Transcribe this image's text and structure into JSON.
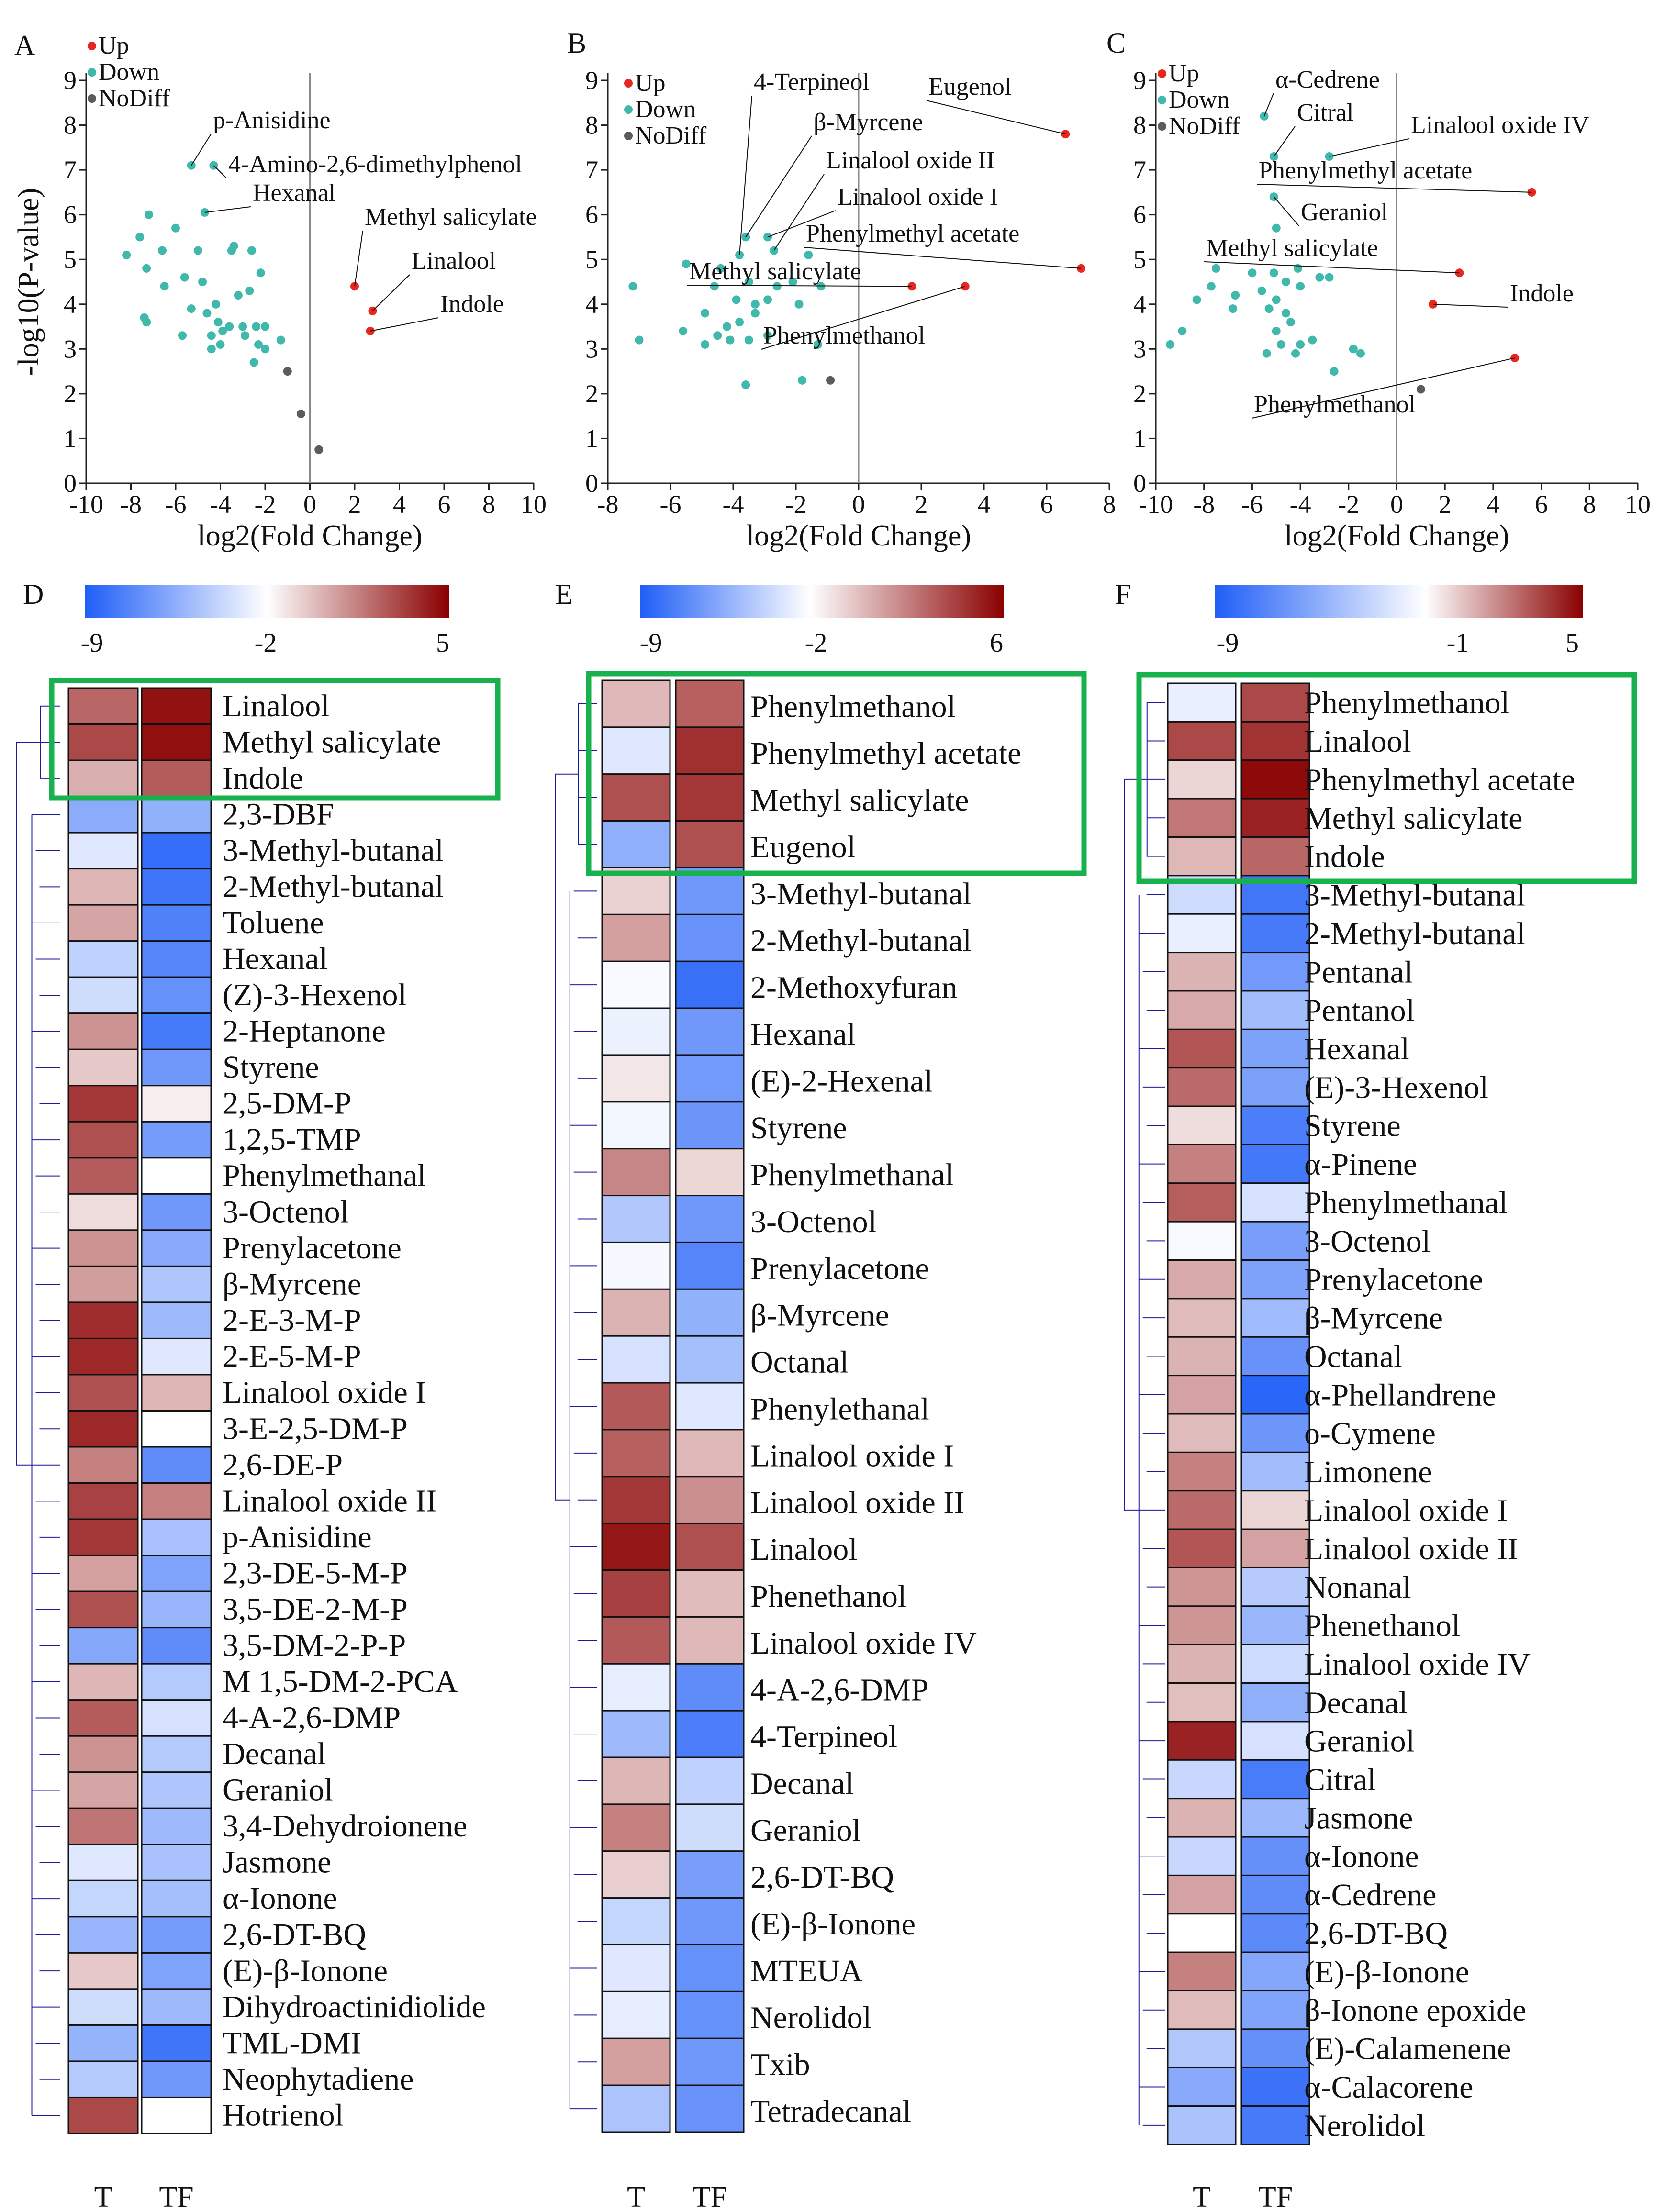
{
  "colors": {
    "up": "#e8281e",
    "down": "#40b9ac",
    "nodiff": "#5c5c5c",
    "low": "#1f5ef7",
    "mid": "#ffffff",
    "high": "#8a0000",
    "box": "#17b14d",
    "tree": "#1a1a9a"
  },
  "chart_data": [
    {
      "type": "scatter",
      "panel": "A",
      "xlabel": "log2(Fold Change)",
      "ylabel": "-log10(P-value)",
      "xlim": [
        -10,
        10
      ],
      "ylim": [
        0,
        9
      ],
      "xticks": [
        -10,
        -8,
        -6,
        -4,
        -2,
        0,
        2,
        4,
        6,
        8,
        10
      ],
      "yticks": [
        0,
        1,
        2,
        3,
        4,
        5,
        6,
        7,
        8,
        9
      ],
      "legend": [
        "Up",
        "Down",
        "NoDiff"
      ],
      "up": [
        [
          2.0,
          4.4
        ],
        [
          2.8,
          3.85
        ],
        [
          2.7,
          3.4
        ]
      ],
      "nodiff": [
        [
          -1.0,
          2.5
        ],
        [
          -0.4,
          1.55
        ],
        [
          0.4,
          0.75
        ]
      ],
      "down": [
        [
          -5.3,
          7.1
        ],
        [
          -4.3,
          7.1
        ],
        [
          -4.7,
          6.05
        ],
        [
          -7.2,
          6.0
        ],
        [
          -6.0,
          5.7
        ],
        [
          -8.2,
          5.1
        ],
        [
          -7.6,
          5.5
        ],
        [
          -6.6,
          5.2
        ],
        [
          -5.0,
          5.2
        ],
        [
          -3.4,
          5.3
        ],
        [
          -3.5,
          5.2
        ],
        [
          -2.6,
          5.2
        ],
        [
          -7.3,
          4.8
        ],
        [
          -5.6,
          4.6
        ],
        [
          -4.8,
          4.5
        ],
        [
          -6.5,
          4.4
        ],
        [
          -2.2,
          4.7
        ],
        [
          -2.7,
          4.3
        ],
        [
          -3.2,
          4.2
        ],
        [
          -4.2,
          4.0
        ],
        [
          -5.3,
          3.9
        ],
        [
          -7.4,
          3.7
        ],
        [
          -7.3,
          3.6
        ],
        [
          -4.6,
          3.8
        ],
        [
          -4.1,
          3.6
        ],
        [
          -3.6,
          3.5
        ],
        [
          -3.0,
          3.5
        ],
        [
          -5.7,
          3.3
        ],
        [
          -4.4,
          3.3
        ],
        [
          -3.9,
          3.4
        ],
        [
          -2.9,
          3.3
        ],
        [
          -4.0,
          3.1
        ],
        [
          -2.4,
          3.5
        ],
        [
          -2.0,
          3.5
        ],
        [
          -2.3,
          3.1
        ],
        [
          -2.0,
          3.0
        ],
        [
          -1.3,
          3.2
        ],
        [
          -2.5,
          2.7
        ],
        [
          -4.4,
          3.0
        ]
      ],
      "labels": [
        {
          "text": "p-Anisidine",
          "pt": [
            -5.3,
            7.1
          ]
        },
        {
          "text": "4-Amino-2,6-dimethylphenol",
          "pt": [
            -4.3,
            7.1
          ]
        },
        {
          "text": "Hexanal",
          "pt": [
            -4.7,
            6.05
          ]
        },
        {
          "text": "Methyl salicylate",
          "pt": [
            2.0,
            4.4
          ]
        },
        {
          "text": "Linalool",
          "pt": [
            2.8,
            3.85
          ]
        },
        {
          "text": "Indole",
          "pt": [
            2.7,
            3.4
          ]
        }
      ]
    },
    {
      "type": "scatter",
      "panel": "B",
      "xlabel": "log2(Fold Change)",
      "ylabel": "",
      "xlim": [
        -8,
        8
      ],
      "ylim": [
        0,
        9
      ],
      "xticks": [
        -8,
        -6,
        -4,
        -2,
        0,
        2,
        4,
        6,
        8
      ],
      "yticks": [
        0,
        1,
        2,
        3,
        4,
        5,
        6,
        7,
        8,
        9
      ],
      "legend": [
        "Up",
        "Down",
        "NoDiff"
      ],
      "up": [
        [
          6.6,
          7.8
        ],
        [
          7.1,
          4.8
        ],
        [
          1.7,
          4.4
        ],
        [
          3.4,
          4.4
        ]
      ],
      "nodiff": [
        [
          -0.9,
          2.3
        ]
      ],
      "down": [
        [
          -3.8,
          5.1
        ],
        [
          -3.6,
          5.5
        ],
        [
          -2.7,
          5.2
        ],
        [
          -2.9,
          5.5
        ],
        [
          -1.6,
          5.1
        ],
        [
          -5.5,
          4.9
        ],
        [
          -4.4,
          4.8
        ],
        [
          -7.2,
          4.4
        ],
        [
          -3.5,
          4.5
        ],
        [
          -4.6,
          4.4
        ],
        [
          -2.6,
          4.4
        ],
        [
          -2.1,
          4.5
        ],
        [
          -1.2,
          4.4
        ],
        [
          -3.9,
          4.1
        ],
        [
          -3.3,
          4.0
        ],
        [
          -2.9,
          4.1
        ],
        [
          -1.9,
          4.0
        ],
        [
          -4.9,
          3.8
        ],
        [
          -4.2,
          3.5
        ],
        [
          -3.8,
          3.6
        ],
        [
          -3.3,
          3.8
        ],
        [
          -5.6,
          3.4
        ],
        [
          -4.5,
          3.3
        ],
        [
          -3.5,
          3.2
        ],
        [
          -7.0,
          3.2
        ],
        [
          -4.9,
          3.1
        ],
        [
          -2.9,
          3.3
        ],
        [
          -4.1,
          3.2
        ],
        [
          -1.3,
          3.1
        ],
        [
          -3.6,
          2.2
        ],
        [
          -1.8,
          2.3
        ]
      ],
      "labels": [
        {
          "text": "4-Terpineol",
          "pt": [
            -3.8,
            5.1
          ]
        },
        {
          "text": "β-Myrcene",
          "pt": [
            -3.6,
            5.5
          ]
        },
        {
          "text": "Linalool oxide II",
          "pt": [
            -2.7,
            5.2
          ]
        },
        {
          "text": "Linalool oxide I",
          "pt": [
            -2.9,
            5.5
          ]
        },
        {
          "text": "Eugenol",
          "pt": [
            6.6,
            7.8
          ]
        },
        {
          "text": "Phenylmethyl acetate",
          "pt": [
            7.1,
            4.8
          ]
        },
        {
          "text": "Methyl salicylate",
          "pt": [
            1.7,
            4.4
          ]
        },
        {
          "text": "Phenylmethanol",
          "pt": [
            3.4,
            4.4
          ]
        }
      ]
    },
    {
      "type": "scatter",
      "panel": "C",
      "xlabel": "log2(Fold Change)",
      "ylabel": "",
      "xlim": [
        -10,
        10
      ],
      "ylim": [
        0,
        9
      ],
      "xticks": [
        -10,
        -8,
        -6,
        -4,
        -2,
        0,
        2,
        4,
        6,
        8,
        10
      ],
      "yticks": [
        0,
        1,
        2,
        3,
        4,
        5,
        6,
        7,
        8,
        9
      ],
      "legend": [
        "Up",
        "Down",
        "NoDiff"
      ],
      "up": [
        [
          5.6,
          6.5
        ],
        [
          2.6,
          4.7
        ],
        [
          1.5,
          4.0
        ],
        [
          4.9,
          2.8
        ]
      ],
      "nodiff": [
        [
          1.0,
          2.1
        ]
      ],
      "down": [
        [
          -5.5,
          8.2
        ],
        [
          -5.1,
          7.3
        ],
        [
          -2.8,
          7.3
        ],
        [
          -5.1,
          6.4
        ],
        [
          -5.0,
          5.7
        ],
        [
          -7.5,
          4.8
        ],
        [
          -6.0,
          4.7
        ],
        [
          -5.1,
          4.7
        ],
        [
          -4.1,
          4.8
        ],
        [
          -2.8,
          4.6
        ],
        [
          -7.7,
          4.4
        ],
        [
          -4.6,
          4.5
        ],
        [
          -4.0,
          4.4
        ],
        [
          -3.2,
          4.6
        ],
        [
          -8.3,
          4.1
        ],
        [
          -5.6,
          4.3
        ],
        [
          -5.0,
          4.1
        ],
        [
          -6.7,
          4.2
        ],
        [
          -6.8,
          3.9
        ],
        [
          -5.3,
          3.9
        ],
        [
          -4.6,
          3.8
        ],
        [
          -8.9,
          3.4
        ],
        [
          -5.0,
          3.4
        ],
        [
          -4.4,
          3.6
        ],
        [
          -3.5,
          3.2
        ],
        [
          -4.8,
          3.1
        ],
        [
          -4.0,
          3.1
        ],
        [
          -9.4,
          3.1
        ],
        [
          -5.4,
          2.9
        ],
        [
          -4.2,
          2.9
        ],
        [
          -1.8,
          3.0
        ],
        [
          -1.5,
          2.9
        ],
        [
          -2.6,
          2.5
        ]
      ],
      "labels": [
        {
          "text": "α-Cedrene",
          "pt": [
            -5.5,
            8.2
          ]
        },
        {
          "text": "Citral",
          "pt": [
            -5.1,
            7.3
          ]
        },
        {
          "text": "Linalool oxide IV",
          "pt": [
            -2.8,
            7.3
          ]
        },
        {
          "text": "Phenylmethyl acetate",
          "pt": [
            5.6,
            6.5
          ]
        },
        {
          "text": "Geraniol",
          "pt": [
            -5.1,
            6.4
          ]
        },
        {
          "text": "Methyl salicylate",
          "pt": [
            2.6,
            4.7
          ]
        },
        {
          "text": "Indole",
          "pt": [
            1.5,
            4.0
          ]
        },
        {
          "text": "Phenylmethanol",
          "pt": [
            4.9,
            2.8
          ]
        }
      ]
    },
    {
      "type": "heatmap",
      "panel": "D",
      "columns": [
        "T",
        "TF"
      ],
      "scale": {
        "min": -9,
        "mid": -2,
        "max": 5
      },
      "rows": [
        [
          "Linalool",
          2.2,
          4.5
        ],
        [
          "Methyl salicylate",
          3.0,
          4.6
        ],
        [
          "Indole",
          0.2,
          2.5
        ],
        [
          "2,3-DBF",
          -5.6,
          -5.4
        ],
        [
          "3-Methyl-butanal",
          -3.0,
          -8.3
        ],
        [
          "2-Methyl-butanal",
          0.0,
          -8.0
        ],
        [
          "Toluene",
          0.5,
          -7.5
        ],
        [
          "Hexanal",
          -4.0,
          -7.3
        ],
        [
          "(Z)-3-Hexenol",
          -3.5,
          -6.8
        ],
        [
          "2-Heptanone",
          1.0,
          -7.8
        ],
        [
          "Styrene",
          -0.5,
          -6.5
        ],
        [
          "2,5-DM-P",
          3.5,
          -1.5
        ],
        [
          "1,2,5-TMP",
          2.8,
          -6.3
        ],
        [
          "Phenylmethanal",
          2.5,
          -2.0
        ],
        [
          "3-Octenol",
          -1.0,
          -6.5
        ],
        [
          "Prenylacetone",
          1.0,
          -5.7
        ],
        [
          "β-Myrcene",
          0.7,
          -4.5
        ],
        [
          "2-E-3-M-P",
          3.8,
          -5.0
        ],
        [
          "2-E-5-M-P",
          3.9,
          -3.0
        ],
        [
          "Linalool oxide I",
          2.8,
          0.0
        ],
        [
          "3-E-2,5-DM-P",
          3.9,
          -2.0
        ],
        [
          "2,6-DE-P",
          1.5,
          -7.0
        ],
        [
          "Linalool oxide II",
          3.2,
          1.5
        ],
        [
          "p-Anisidine",
          3.5,
          -4.7
        ],
        [
          "2,3-DE-5-M-P",
          0.6,
          -6.0
        ],
        [
          "3,5-DE-2-M-P",
          2.8,
          -5.2
        ],
        [
          "3,5-DM-2-P-P",
          -5.8,
          -7.0
        ],
        [
          "M 1,5-DM-2-PCA",
          0.0,
          -4.3
        ],
        [
          "4-A-2,6-DMP",
          2.5,
          -3.3
        ],
        [
          "Decanal",
          1.0,
          -4.3
        ],
        [
          "Geraniol",
          0.5,
          -4.5
        ],
        [
          "3,4-Dehydroionene",
          1.8,
          -5.0
        ],
        [
          "Jasmone",
          -3.0,
          -4.7
        ],
        [
          "α-Ionone",
          -3.8,
          -4.8
        ],
        [
          "2,6-DT-BQ",
          -5.2,
          -6.3
        ],
        [
          "(E)-β-Ionone",
          -0.5,
          -6.0
        ],
        [
          "Dihydroactinidiolide",
          -3.5,
          -5.0
        ],
        [
          "TML-DMI",
          -5.3,
          -8.0
        ],
        [
          "Neophytadiene",
          -4.3,
          -6.5
        ],
        [
          "Hotrienol",
          3.0,
          -2.0
        ]
      ]
    },
    {
      "type": "heatmap",
      "panel": "E",
      "columns": [
        "T",
        "TF"
      ],
      "scale": {
        "min": -9,
        "mid": -2,
        "max": 6
      },
      "rows": [
        [
          "Phenylmethanol",
          0.2,
          3.0
        ],
        [
          "Phenylmethyl acetate",
          -3.0,
          4.5
        ],
        [
          "Methyl salicylate",
          3.5,
          4.3
        ],
        [
          "Eugenol",
          -5.5,
          3.5
        ],
        [
          "3-Methyl-butanal",
          -0.6,
          -6.5
        ],
        [
          "2-Methyl-butanal",
          1.0,
          -6.7
        ],
        [
          "2-Methoxyfuran",
          -2.2,
          -8.2
        ],
        [
          "Hexanal",
          -2.6,
          -6.5
        ],
        [
          "(E)-2-Hexenal",
          -1.2,
          -6.4
        ],
        [
          "Styrene",
          -2.4,
          -6.6
        ],
        [
          "Phenylmethanal",
          1.8,
          -0.7
        ],
        [
          "3-Octenol",
          -4.4,
          -6.5
        ],
        [
          "Prenylacetone",
          -2.3,
          -7.3
        ],
        [
          "β-Myrcene",
          0.4,
          -5.4
        ],
        [
          "Octanal",
          -3.3,
          -4.8
        ],
        [
          "Phenylethanal",
          3.2,
          -3.0
        ],
        [
          "Linalool oxide I",
          3.0,
          0.2
        ],
        [
          "Linalool oxide II",
          4.3,
          1.5
        ],
        [
          "Linalool",
          5.3,
          3.5
        ],
        [
          "Phenethanol",
          4.0,
          0.1
        ],
        [
          "Linalool oxide IV",
          3.2,
          0.2
        ],
        [
          "4-A-2,6-DMP",
          -2.8,
          -7.0
        ],
        [
          "4-Terpineol",
          -5.0,
          -7.6
        ],
        [
          "Decanal",
          0.3,
          -4.0
        ],
        [
          "Geraniol",
          2.0,
          -3.5
        ],
        [
          "2,6-DT-BQ",
          -0.5,
          -6.2
        ],
        [
          "(E)-β-Ionone",
          -3.8,
          -6.5
        ],
        [
          "MTEUA",
          -3.0,
          -6.8
        ],
        [
          "Nerolidol",
          -2.8,
          -6.8
        ],
        [
          "Txib",
          1.0,
          -6.5
        ],
        [
          "Tetradecanal",
          -4.6,
          -6.7
        ]
      ]
    },
    {
      "type": "heatmap",
      "panel": "F",
      "columns": [
        "T",
        "TF"
      ],
      "scale": {
        "min": -9,
        "mid": -1,
        "max": 5
      },
      "rows": [
        [
          "Phenylmethanol",
          -1.8,
          3.3
        ],
        [
          "Linalool",
          3.3,
          3.8
        ],
        [
          "Phenylmethyl acetate",
          0.0,
          4.8
        ],
        [
          "Methyl salicylate",
          2.2,
          4.2
        ],
        [
          "Indole",
          0.7,
          2.6
        ],
        [
          "3-Methyl-butanal",
          -2.8,
          -7.8
        ],
        [
          "2-Methyl-butanal",
          -1.8,
          -7.6
        ],
        [
          "Pentanal",
          0.8,
          -6.0
        ],
        [
          "Pentanol",
          1.0,
          -4.3
        ],
        [
          "Hexanal",
          3.0,
          -5.6
        ],
        [
          "(E)-3-Hexenol",
          2.5,
          -5.7
        ],
        [
          "Styrene",
          -0.2,
          -7.4
        ],
        [
          "α-Pinene",
          2.0,
          -7.7
        ],
        [
          "Phenylmethanal",
          2.8,
          -2.5
        ],
        [
          "3-Octenol",
          -1.3,
          -5.8
        ],
        [
          "Prenylacetone",
          1.0,
          -5.6
        ],
        [
          "β-Myrcene",
          0.6,
          -4.4
        ],
        [
          "Octanal",
          0.8,
          -6.4
        ],
        [
          "α-Phellandrene",
          1.2,
          -8.6
        ],
        [
          "o-Cymene",
          0.6,
          -6.2
        ],
        [
          "Limonene",
          2.0,
          -4.3
        ],
        [
          "Linalool oxide I",
          2.5,
          0.0
        ],
        [
          "Linalool oxide II",
          3.0,
          1.2
        ],
        [
          "Nonanal",
          1.5,
          -3.6
        ],
        [
          "Phenethanol",
          1.5,
          -4.6
        ],
        [
          "Linalool oxide IV",
          0.8,
          -2.8
        ],
        [
          "Decanal",
          0.5,
          -5.0
        ],
        [
          "Geraniol",
          4.2,
          -2.5
        ],
        [
          "Citral",
          -3.0,
          -7.5
        ],
        [
          "Jasmone",
          0.8,
          -4.5
        ],
        [
          "α-Ionone",
          -3.0,
          -6.5
        ],
        [
          "α-Cedrene",
          1.2,
          -6.7
        ],
        [
          "2,6-DT-BQ",
          -1.0,
          -6.8
        ],
        [
          "(E)-β-Ionone",
          2.0,
          -5.4
        ],
        [
          "β-Ionone epoxide",
          0.6,
          -5.5
        ],
        [
          "(E)-Calamenene",
          -3.8,
          -6.5
        ],
        [
          "α-Calacorene",
          -5.2,
          -8.0
        ],
        [
          "Nerolidol",
          -4.0,
          -7.6
        ]
      ]
    }
  ]
}
